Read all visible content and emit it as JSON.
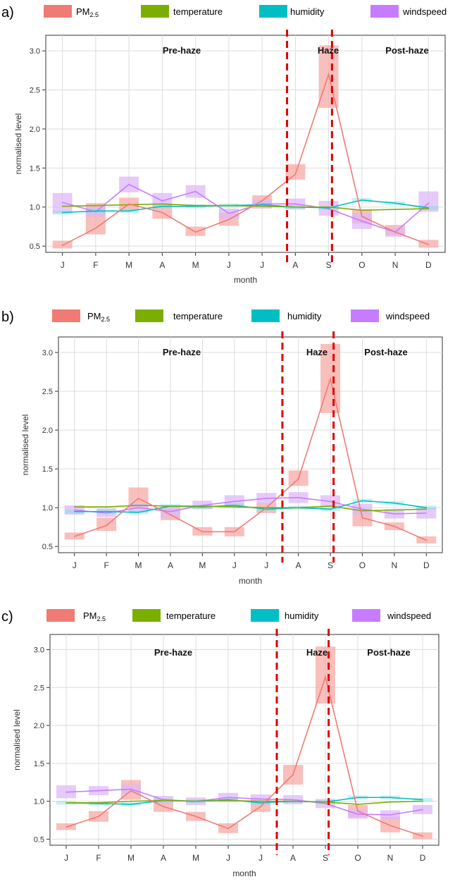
{
  "colors": {
    "pm25": "#f07a74",
    "pm25_band": "#f5a9a5",
    "temperature": "#7cae00",
    "humidity": "#00bfc4",
    "windspeed": "#c77cff",
    "windspeed_band": "#ddb8f8",
    "humidity_band": "#7fdfe2",
    "temperature_band": "#b8d87a",
    "divider": "#e00000",
    "grid": "#dcdcdc",
    "axis": "#333333",
    "text": "#333333"
  },
  "chart_data": [
    {
      "panel_label": "a)",
      "type": "line",
      "legend": {
        "pm_main": "PM",
        "pm_sub": "2.5",
        "temperature": "temperature",
        "humidity": "humidity",
        "windspeed": "windspeed"
      },
      "categories": [
        "J",
        "F",
        "M",
        "A",
        "M",
        "J",
        "J",
        "A",
        "S",
        "O",
        "N",
        "D"
      ],
      "xlabel": "month",
      "ylabel": "normalised level",
      "yticks": [
        "0.5",
        "1.0",
        "1.5",
        "2.0",
        "2.5",
        "3.0"
      ],
      "ylim": [
        0.42,
        3.2
      ],
      "grid": true,
      "regions": [
        "Pre-haze",
        "Haze",
        "Post-haze"
      ],
      "dividers": [
        7.25,
        8.6
      ],
      "series": [
        {
          "key": "pm25",
          "values": [
            0.51,
            0.73,
            1.04,
            0.93,
            0.68,
            0.84,
            1.08,
            1.42,
            2.7,
            0.88,
            0.68,
            0.52
          ],
          "band": [
            [
              0.47,
              0.57
            ],
            [
              0.65,
              1.05
            ],
            [
              0.96,
              1.12
            ],
            [
              0.85,
              1.02
            ],
            [
              0.63,
              0.75
            ],
            [
              0.76,
              0.93
            ],
            [
              1.02,
              1.15
            ],
            [
              1.35,
              1.55
            ],
            [
              2.27,
              3.07
            ],
            [
              0.79,
              0.97
            ],
            [
              0.64,
              0.77
            ],
            [
              0.48,
              0.58
            ]
          ]
        },
        {
          "key": "temperature",
          "values": [
            1.01,
            1.02,
            1.03,
            1.04,
            1.02,
            1.02,
            1.01,
            1.0,
            1.0,
            0.96,
            0.97,
            0.98
          ]
        },
        {
          "key": "humidity",
          "values": [
            0.93,
            0.95,
            0.95,
            1.01,
            1.01,
            1.02,
            1.03,
            1.0,
            0.99,
            1.09,
            1.05,
            0.99
          ]
        },
        {
          "key": "windspeed",
          "values": [
            1.06,
            0.94,
            1.29,
            1.08,
            1.2,
            0.92,
            1.04,
            1.04,
            0.98,
            0.82,
            0.68,
            1.05
          ],
          "band": [
            [
              0.92,
              1.18
            ],
            [
              0.88,
              1.0
            ],
            [
              1.19,
              1.39
            ],
            [
              1.0,
              1.18
            ],
            [
              1.12,
              1.28
            ],
            [
              0.85,
              0.98
            ],
            [
              0.98,
              1.1
            ],
            [
              0.97,
              1.11
            ],
            [
              0.89,
              1.08
            ],
            [
              0.72,
              0.92
            ],
            [
              0.62,
              0.73
            ],
            [
              0.94,
              1.2
            ]
          ]
        }
      ]
    },
    {
      "panel_label": "b)",
      "type": "line",
      "legend": {
        "pm_main": "PM",
        "pm_sub": "2.5",
        "temperature": "temperature",
        "humidity": "humidity",
        "windspeed": "windspeed"
      },
      "categories": [
        "J",
        "F",
        "M",
        "A",
        "M",
        "J",
        "J",
        "A",
        "S",
        "O",
        "N",
        "D"
      ],
      "xlabel": "month",
      "ylabel": "normalised level",
      "yticks": [
        "0.5",
        "1.0",
        "1.5",
        "2.0",
        "2.5",
        "3.0"
      ],
      "ylim": [
        0.42,
        3.2
      ],
      "grid": true,
      "regions": [
        "Pre-haze",
        "Haze",
        "Post-haze"
      ],
      "dividers": [
        7.0,
        8.6
      ],
      "series": [
        {
          "key": "pm25",
          "values": [
            0.63,
            0.77,
            1.12,
            0.91,
            0.69,
            0.69,
            1.0,
            1.37,
            2.66,
            0.87,
            0.76,
            0.58
          ],
          "band": [
            [
              0.59,
              0.68
            ],
            [
              0.7,
              0.87
            ],
            [
              0.99,
              1.26
            ],
            [
              0.84,
              0.99
            ],
            [
              0.64,
              0.75
            ],
            [
              0.63,
              0.75
            ],
            [
              0.93,
              1.06
            ],
            [
              1.28,
              1.48
            ],
            [
              2.22,
              3.11
            ],
            [
              0.76,
              0.98
            ],
            [
              0.71,
              0.81
            ],
            [
              0.54,
              0.63
            ]
          ]
        },
        {
          "key": "temperature",
          "values": [
            1.01,
            1.01,
            1.03,
            1.02,
            1.02,
            1.01,
            1.0,
            1.0,
            1.02,
            0.96,
            0.97,
            0.98
          ]
        },
        {
          "key": "humidity",
          "values": [
            0.95,
            0.95,
            0.94,
            1.02,
            1.01,
            1.03,
            0.98,
            1.0,
            0.98,
            1.09,
            1.06,
            1.0
          ]
        },
        {
          "key": "windspeed",
          "values": [
            0.97,
            0.93,
            1.0,
            0.95,
            1.03,
            1.08,
            1.12,
            1.13,
            1.08,
            0.98,
            0.92,
            0.93
          ],
          "band": [
            [
              0.91,
              1.03
            ],
            [
              0.88,
              0.99
            ],
            [
              0.94,
              1.06
            ],
            [
              0.88,
              1.02
            ],
            [
              0.98,
              1.09
            ],
            [
              1.01,
              1.16
            ],
            [
              1.05,
              1.19
            ],
            [
              1.06,
              1.2
            ],
            [
              1.01,
              1.16
            ],
            [
              0.91,
              1.05
            ],
            [
              0.86,
              0.98
            ],
            [
              0.86,
              1.0
            ]
          ]
        }
      ]
    },
    {
      "panel_label": "c)",
      "type": "line",
      "legend": {
        "pm_main": "PM",
        "pm_sub": "2.5",
        "temperature": "temperature",
        "humidity": "humidity",
        "windspeed": "windspeed"
      },
      "categories": [
        "J",
        "F",
        "M",
        "A",
        "M",
        "J",
        "J",
        "A",
        "S",
        "O",
        "N",
        "D"
      ],
      "xlabel": "month",
      "ylabel": "normalised level",
      "yticks": [
        "0.5",
        "1.0",
        "1.5",
        "2.0",
        "2.5",
        "3.0"
      ],
      "ylim": [
        0.42,
        3.2
      ],
      "grid": true,
      "regions": [
        "Pre-haze",
        "Haze",
        "Post-haze"
      ],
      "dividers": [
        7.0,
        8.6
      ],
      "series": [
        {
          "key": "pm25",
          "values": [
            0.66,
            0.8,
            1.14,
            0.93,
            0.8,
            0.64,
            0.93,
            1.35,
            2.64,
            0.87,
            0.68,
            0.54
          ],
          "band": [
            [
              0.62,
              0.71
            ],
            [
              0.73,
              0.87
            ],
            [
              1.02,
              1.28
            ],
            [
              0.86,
              1.03
            ],
            [
              0.74,
              0.86
            ],
            [
              0.58,
              0.71
            ],
            [
              0.86,
              1.03
            ],
            [
              1.22,
              1.48
            ],
            [
              2.29,
              3.04
            ],
            [
              0.79,
              0.95
            ],
            [
              0.59,
              0.8
            ],
            [
              0.5,
              0.59
            ]
          ]
        },
        {
          "key": "temperature",
          "values": [
            0.98,
            0.98,
            1.0,
            1.01,
            1.0,
            1.01,
            1.0,
            1.0,
            0.99,
            0.96,
            0.99,
            1.0
          ]
        },
        {
          "key": "humidity",
          "values": [
            0.98,
            0.97,
            0.96,
            1.01,
            1.0,
            1.02,
            0.98,
            1.0,
            0.99,
            1.05,
            1.05,
            1.02
          ]
        },
        {
          "key": "windspeed",
          "values": [
            1.12,
            1.14,
            1.16,
            1.02,
            1.0,
            1.05,
            1.03,
            1.02,
            0.97,
            0.83,
            0.82,
            0.89
          ],
          "band": [
            [
              1.04,
              1.21
            ],
            [
              1.08,
              1.2
            ],
            [
              1.1,
              1.22
            ],
            [
              0.97,
              1.07
            ],
            [
              0.95,
              1.05
            ],
            [
              0.99,
              1.11
            ],
            [
              0.97,
              1.09
            ],
            [
              0.96,
              1.08
            ],
            [
              0.91,
              1.03
            ],
            [
              0.77,
              0.89
            ],
            [
              0.76,
              0.88
            ],
            [
              0.83,
              0.95
            ]
          ]
        }
      ]
    }
  ]
}
